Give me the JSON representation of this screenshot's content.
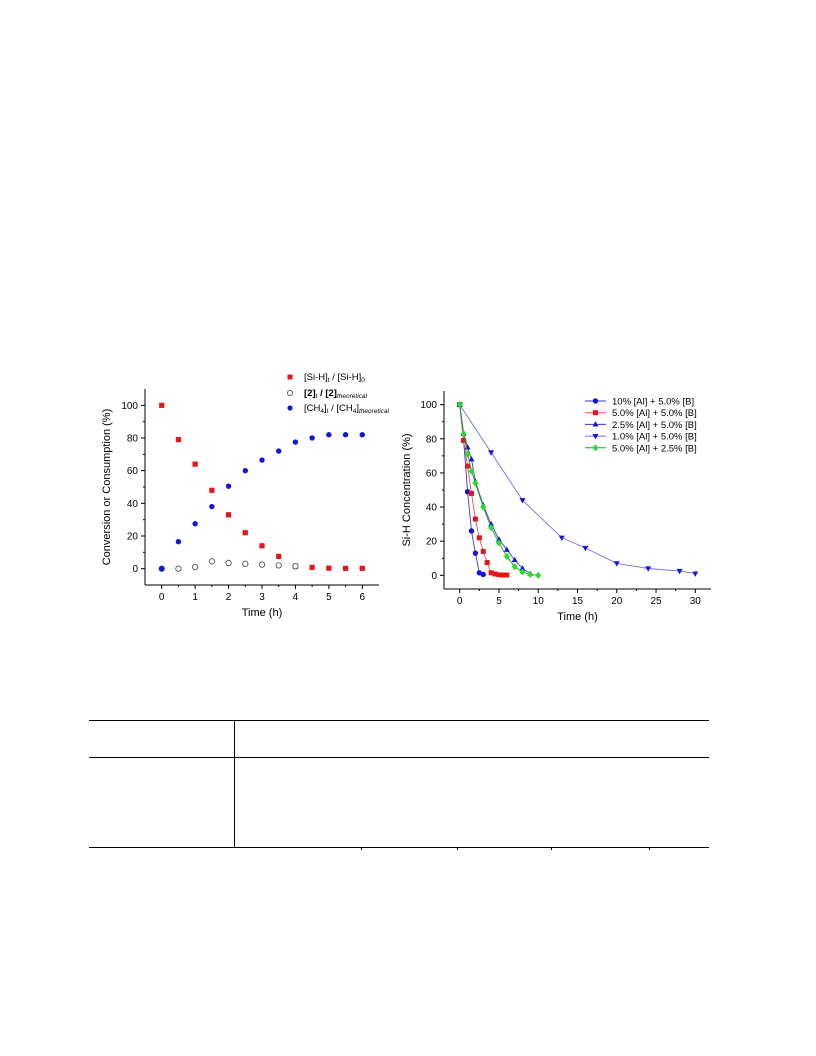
{
  "chart_data": [
    {
      "type": "scatter",
      "xlabel": "Time (h)",
      "ylabel": "Conversion or Consumption (%)",
      "xlim": [
        -0.5,
        6.5
      ],
      "ylim": [
        -10,
        110
      ],
      "xticks": [
        0,
        1,
        2,
        3,
        4,
        5,
        6
      ],
      "yticks": [
        0,
        20,
        40,
        60,
        80,
        100
      ],
      "legend_position": "top-right",
      "legend_text": [
        "[Si-H]",
        "t",
        " / [Si-H]",
        "0",
        "[2]",
        "t",
        " / [2]",
        "theoretical",
        "[CH",
        "4",
        "]",
        "t",
        " / [CH",
        "4",
        "]",
        "theoretical"
      ],
      "series": [
        {
          "name": "[Si-H]t / [Si-H]0",
          "marker": "square",
          "color": "#e8141c",
          "x": [
            0,
            0.5,
            1,
            1.5,
            2,
            2.5,
            3,
            3.5,
            4,
            4.5,
            5,
            5.5,
            6
          ],
          "y": [
            100,
            79,
            64,
            48,
            33,
            22,
            14,
            7.5,
            1.5,
            0.8,
            0.3,
            0.2,
            0.2
          ]
        },
        {
          "name": "[2]t / [2]theoretical",
          "marker": "open-circle",
          "color": "#555555",
          "x": [
            0,
            0.5,
            1,
            1.5,
            2,
            2.5,
            3,
            3.5,
            4
          ],
          "y": [
            0,
            0,
            1,
            4.5,
            3.5,
            3,
            2.5,
            2,
            1.5
          ]
        },
        {
          "name": "[CH4]t / [CH4]theoretical",
          "marker": "circle",
          "color": "#1414d8",
          "x": [
            0,
            0.5,
            1,
            1.5,
            2,
            2.5,
            3,
            3.5,
            4,
            4.5,
            5,
            5.5,
            6
          ],
          "y": [
            0,
            16.5,
            27.5,
            38,
            50.5,
            60,
            66.5,
            72,
            77.5,
            80,
            82,
            82,
            82
          ]
        }
      ]
    },
    {
      "type": "line",
      "xlabel": "Time (h)",
      "ylabel": "Si-H Concentration (%)",
      "xlim": [
        -2,
        32
      ],
      "ylim": [
        -8,
        108
      ],
      "xticks": [
        0,
        5,
        10,
        15,
        20,
        25,
        30
      ],
      "yticks": [
        0,
        20,
        40,
        60,
        80,
        100
      ],
      "legend_position": "top-right",
      "series": [
        {
          "name": "10% [Al] + 5.0% [B]",
          "marker": "circle",
          "color": "#1414d8",
          "line_color": "#3a3ac8",
          "x": [
            0,
            0.5,
            1,
            1.5,
            2,
            2.5,
            3
          ],
          "y": [
            100,
            79,
            49,
            26,
            13,
            1.5,
            0.5
          ]
        },
        {
          "name": "5.0% [Al] + 5.0% [B]",
          "marker": "square",
          "color": "#e8141c",
          "line_color": "#e85050",
          "x": [
            0,
            0.5,
            1,
            1.5,
            2,
            2.5,
            3,
            3.5,
            4,
            4.5,
            5,
            5.5,
            6
          ],
          "y": [
            100,
            79,
            64,
            48,
            33,
            22,
            14,
            7.5,
            1.5,
            0.8,
            0.3,
            0.2,
            0.2
          ]
        },
        {
          "name": "2.5% [Al] + 5.0% [B]",
          "marker": "triangle",
          "color": "#1414d8",
          "line_color": "#3a3ac8",
          "x": [
            0,
            0.5,
            1,
            1.5,
            2,
            3,
            4,
            5,
            6,
            7,
            8,
            9
          ],
          "y": [
            100,
            83,
            75,
            68,
            55,
            41,
            30,
            21,
            15,
            9,
            4,
            1
          ]
        },
        {
          "name": "1.0% [Al] + 5.0% [B]",
          "marker": "triangle-down",
          "color": "#1414d8",
          "line_color": "#7070e0",
          "x": [
            0,
            4,
            8,
            13,
            16,
            20,
            24,
            28,
            30
          ],
          "y": [
            100,
            72,
            44,
            22,
            16,
            7,
            4,
            2.5,
            1
          ]
        },
        {
          "name": "5.0% [Al] + 2.5% [B]",
          "marker": "diamond",
          "color": "#22e022",
          "line_color": "#22a022",
          "x": [
            0,
            0.5,
            1,
            1.5,
            2,
            3,
            4,
            5,
            6,
            7,
            8,
            9,
            10
          ],
          "y": [
            100,
            83,
            71,
            61,
            54,
            40,
            28,
            19,
            11,
            5,
            2,
            0.5,
            0
          ]
        }
      ]
    }
  ],
  "table": {
    "header_cells": [
      "",
      ""
    ],
    "body_cells": [
      "",
      ""
    ]
  }
}
